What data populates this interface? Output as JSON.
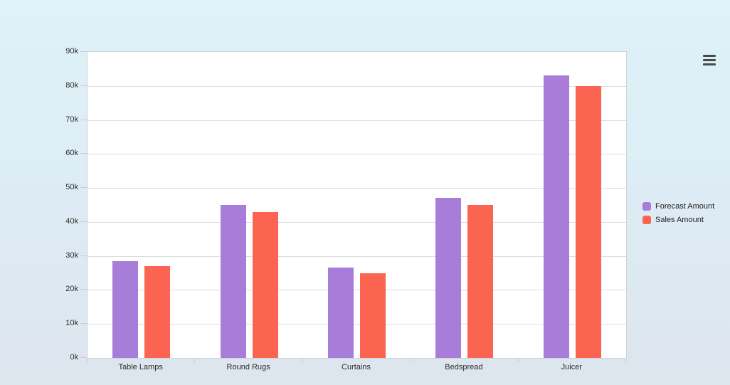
{
  "toolbar": {
    "menu_icon": "hamburger-menu"
  },
  "colors": {
    "page_bg_top": "#def2f8",
    "page_bg_bottom": "#dde5ed",
    "plot_bg": "#ffffff",
    "gridline": "#dcdcdc",
    "axis_border": "#cdd3d8",
    "tick": "#c3cbd1",
    "label_text": "#2b2b2b",
    "menu_icon": "#4a4a4a",
    "forecast_purple": "#a87cd9",
    "sales_red": "#fa6450"
  },
  "chart_data": {
    "type": "bar",
    "title": "",
    "xlabel": "",
    "ylabel": "",
    "categories": [
      "Table Lamps",
      "Round Rugs",
      "Curtains",
      "Bedspread",
      "Juicer"
    ],
    "series": [
      {
        "name": "Forecast Amount",
        "color": "#a87cd9",
        "values": [
          28500,
          45000,
          26500,
          47000,
          83000
        ]
      },
      {
        "name": "Sales Amount",
        "color": "#fa6450",
        "values": [
          27000,
          43000,
          25000,
          45000,
          80000
        ]
      }
    ],
    "ylim": [
      0,
      90000
    ],
    "ytick_step": 10000,
    "ytick_labels": [
      "0k",
      "10k",
      "20k",
      "30k",
      "40k",
      "50k",
      "60k",
      "70k",
      "80k",
      "90k"
    ],
    "grid": "horizontal",
    "legend_position": "right-middle"
  }
}
